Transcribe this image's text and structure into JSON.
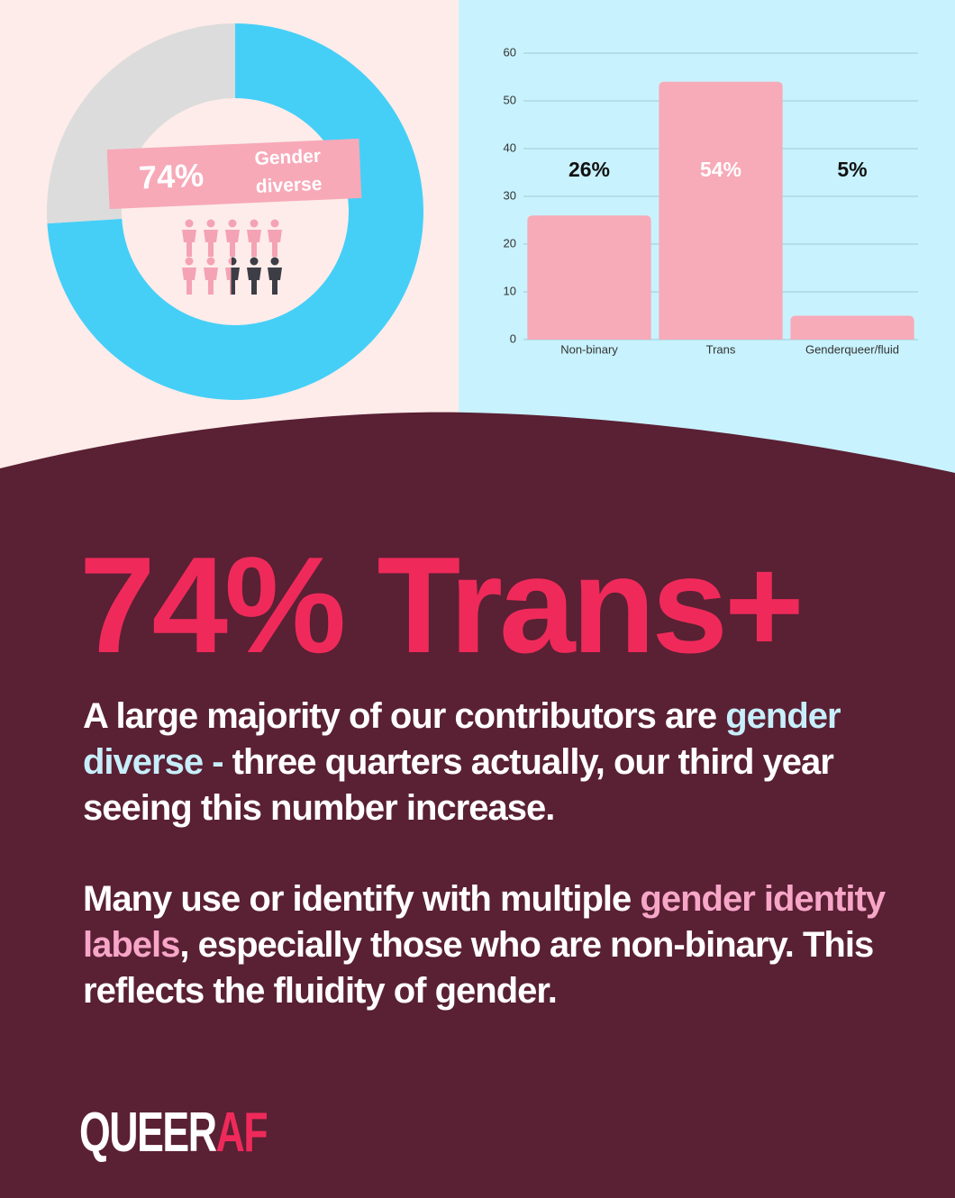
{
  "chart_data": [
    {
      "type": "pie",
      "donut": true,
      "categories": [
        "Gender diverse",
        null
      ],
      "values": [
        74,
        26
      ],
      "value_labels": [
        "74%",
        null
      ],
      "colors": [
        "#45cff7",
        "#dcdcdc"
      ]
    },
    {
      "type": "bar",
      "categories": [
        "Non-binary",
        "Trans",
        "Genderqueer/fluid"
      ],
      "values": [
        26,
        54,
        5
      ],
      "value_labels": [
        "26%",
        "54%",
        "5%"
      ],
      "color": "#f7aab8",
      "ylim": [
        0,
        60
      ],
      "yticks": [
        0,
        10,
        20,
        30,
        40,
        50,
        60
      ],
      "grid": true
    }
  ],
  "headline": "74% Trans+",
  "paragraphs": [
    [
      "A large majority of our contributors are ",
      "gender diverse -",
      " three quarters actually, our third year seeing this number increase."
    ],
    [
      "Many use or identify with multiple ",
      "gender identity labels",
      ", especially those who are non-binary. This reflects the fluidity of gender."
    ]
  ],
  "logo": [
    "QUEER",
    "AF"
  ]
}
